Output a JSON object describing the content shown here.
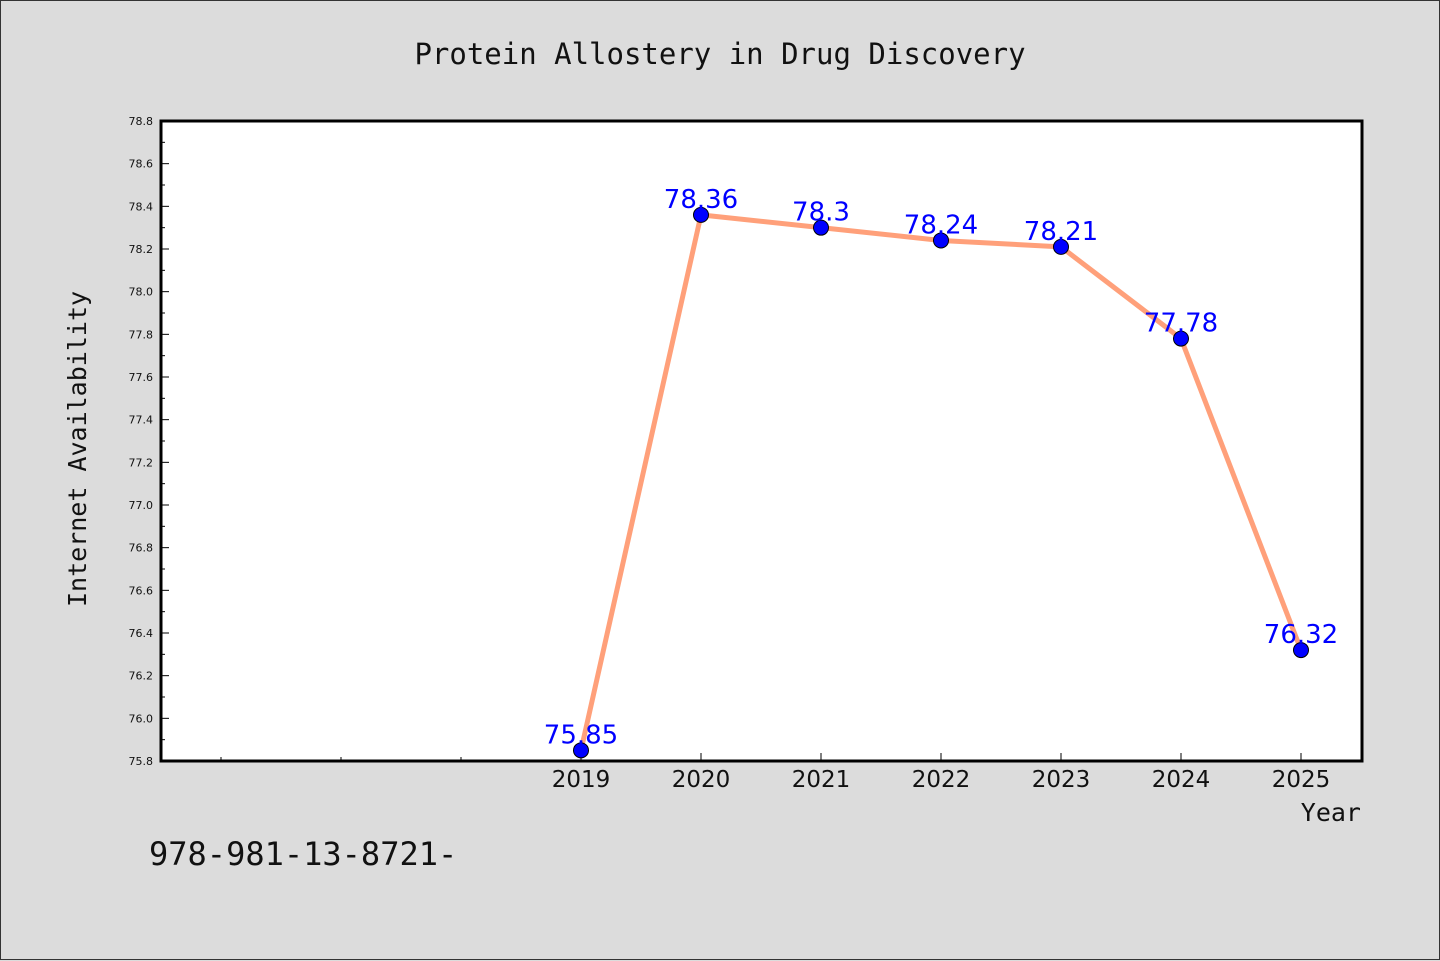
{
  "chart_data": {
    "type": "line",
    "title": "Protein Allostery in Drug Discovery",
    "xlabel": "Year",
    "ylabel": "Internet Availability",
    "categories": [
      "2019",
      "2020",
      "2021",
      "2022",
      "2023",
      "2024",
      "2025"
    ],
    "series": [
      {
        "values": [
          75.85,
          78.36,
          78.3,
          78.24,
          78.21,
          77.78,
          76.32
        ],
        "labels": [
          "75.85",
          "78.36",
          "78.3",
          "78.24",
          "78.21",
          "77.78",
          "76.32"
        ]
      }
    ],
    "ylim": [
      75.8,
      78.8
    ],
    "yticks": [
      "75.8",
      "76.0",
      "76.2",
      "76.4",
      "76.6",
      "76.8",
      "77.0",
      "77.2",
      "77.4",
      "77.6",
      "77.8",
      "78.0",
      "78.2",
      "78.4",
      "78.6",
      "78.8"
    ],
    "grid": false,
    "colors": {
      "line": "#ffa07a",
      "marker": "#0000ff",
      "label": "#0000ff",
      "background": "#dcdcdc",
      "plot_area": "#ffffff"
    }
  },
  "footer": {
    "isbn": "978-981-13-8721-"
  }
}
